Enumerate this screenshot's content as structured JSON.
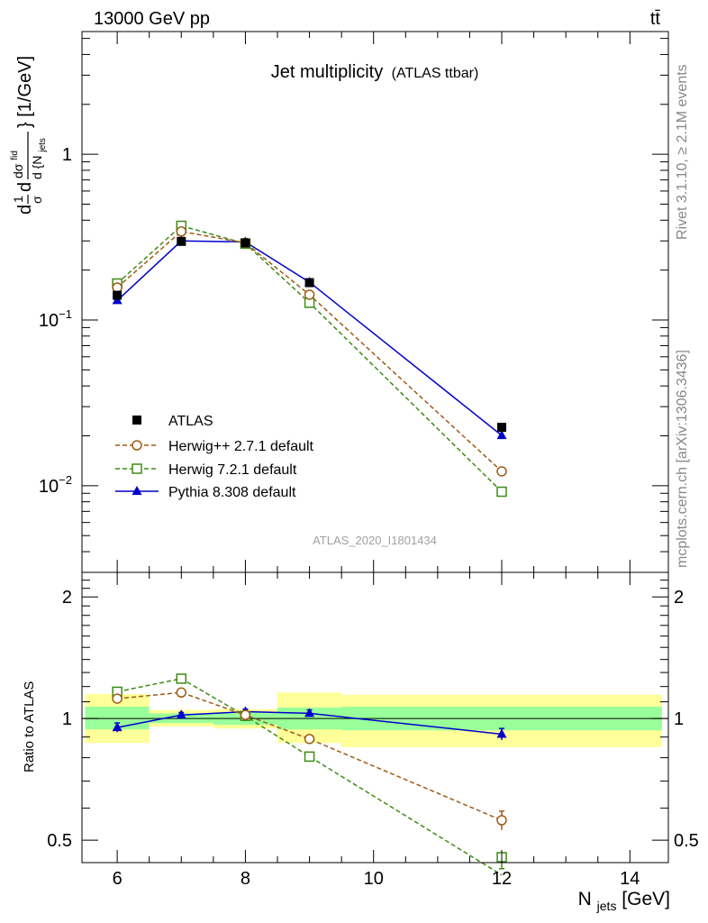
{
  "header": {
    "energy": "13000 GeV pp",
    "process": "tt̄"
  },
  "side_labels": {
    "rivet": "Rivet 3.1.10, ≥ 2.1M events",
    "source": "mcplots.cern.ch [arXiv:1306.3436]"
  },
  "chart_data": [
    {
      "type": "line",
      "panel": "main",
      "title": "Jet multiplicity",
      "subtitle": "(ATLAS ttbar)",
      "watermark": "ATLAS_2020_I1801434",
      "ylabel": {
        "lead": "d",
        "frac1_num": "1",
        "frac1_den": "σ",
        "d_mid": "d",
        "frac2_num": "dσ",
        "frac2_sup": "fid",
        "frac2_den": "d {N",
        "frac2_den_sub": "jets",
        "tail": "} [1/GeV]"
      },
      "yscale": "log",
      "ylim": [
        0.003,
        5.5
      ],
      "xlim": [
        5.45,
        14.6
      ],
      "y_ticks": [
        {
          "value": 1,
          "label": "1"
        },
        {
          "value": 0.1,
          "label": "10",
          "exp": "−1"
        },
        {
          "value": 0.01,
          "label": "10",
          "exp": "−2"
        }
      ],
      "legend_position": "lower-left",
      "series": [
        {
          "name": "ATLAS",
          "style": "data",
          "color": "#000000",
          "marker": "square-filled",
          "x": [
            6,
            7,
            8,
            9,
            12
          ],
          "y": [
            0.141,
            0.298,
            0.292,
            0.168,
            0.0225
          ]
        },
        {
          "name": "Herwig++ 2.7.1 default",
          "style": "dashed",
          "color": "#a05a14",
          "marker": "circle-open",
          "x": [
            6,
            7,
            8,
            9,
            12
          ],
          "y": [
            0.157,
            0.342,
            0.292,
            0.142,
            0.0122
          ]
        },
        {
          "name": "Herwig 7.2.1 default",
          "style": "dashed",
          "color": "#3c8c14",
          "marker": "square-open",
          "x": [
            6,
            7,
            8,
            9,
            12
          ],
          "y": [
            0.166,
            0.37,
            0.289,
            0.127,
            0.0092
          ]
        },
        {
          "name": "Pythia 8.308 default",
          "style": "solid",
          "color": "#0000cc",
          "marker": "triangle-filled",
          "x": [
            6,
            7,
            8,
            9,
            12
          ],
          "y": [
            0.131,
            0.3,
            0.296,
            0.169,
            0.0201
          ]
        }
      ]
    },
    {
      "type": "line",
      "panel": "ratio",
      "ylabel": "Ratio to ATLAS",
      "xlabel": {
        "main": "N",
        "sub": "jets",
        "tail": " [GeV]"
      },
      "yscale": "log",
      "ylim": [
        0.44,
        2.3
      ],
      "xlim": [
        5.45,
        14.6
      ],
      "x_ticks": [
        6,
        8,
        10,
        12,
        14
      ],
      "y_ticks": [
        {
          "value": 2,
          "label": "2"
        },
        {
          "value": 1,
          "label": "1"
        },
        {
          "value": 0.5,
          "label": "0.5"
        }
      ],
      "bands": [
        {
          "x0": 5.5,
          "x1": 6.5,
          "inner": [
            0.94,
            1.07
          ],
          "outer": [
            0.87,
            1.15
          ]
        },
        {
          "x0": 6.5,
          "x1": 7.5,
          "inner": [
            0.975,
            1.03
          ],
          "outer": [
            0.955,
            1.05
          ]
        },
        {
          "x0": 7.5,
          "x1": 8.5,
          "inner": [
            0.965,
            1.035
          ],
          "outer": [
            0.945,
            1.055
          ]
        },
        {
          "x0": 8.5,
          "x1": 9.5,
          "inner": [
            0.94,
            1.065
          ],
          "outer": [
            0.87,
            1.16
          ]
        },
        {
          "x0": 9.5,
          "x1": 14.5,
          "inner": [
            0.935,
            1.07
          ],
          "outer": [
            0.85,
            1.145
          ]
        }
      ],
      "series": [
        {
          "name": "Herwig++ 2.7.1 default",
          "color": "#a05a14",
          "marker": "circle-open",
          "style": "dashed",
          "x": [
            6,
            7,
            8,
            9,
            12
          ],
          "y": [
            1.12,
            1.16,
            1.02,
            0.89,
            0.56
          ],
          "yerr": [
            0,
            0,
            0,
            0,
            0.03
          ]
        },
        {
          "name": "Herwig 7.2.1 default",
          "color": "#3c8c14",
          "marker": "square-open",
          "style": "dashed",
          "x": [
            6,
            7,
            8,
            9,
            12
          ],
          "y": [
            1.165,
            1.255,
            1.015,
            0.805,
            0.41
          ],
          "yerr": [
            0,
            0,
            0,
            0,
            0.015
          ]
        },
        {
          "name": "Pythia 8.308 default",
          "color": "#0000cc",
          "marker": "triangle-filled",
          "style": "solid",
          "x": [
            6,
            7,
            8,
            9,
            12
          ],
          "y": [
            0.95,
            1.02,
            1.04,
            1.03,
            0.915
          ],
          "yerr": [
            0.025,
            0.015,
            0.015,
            0.02,
            0.03
          ]
        }
      ]
    }
  ]
}
